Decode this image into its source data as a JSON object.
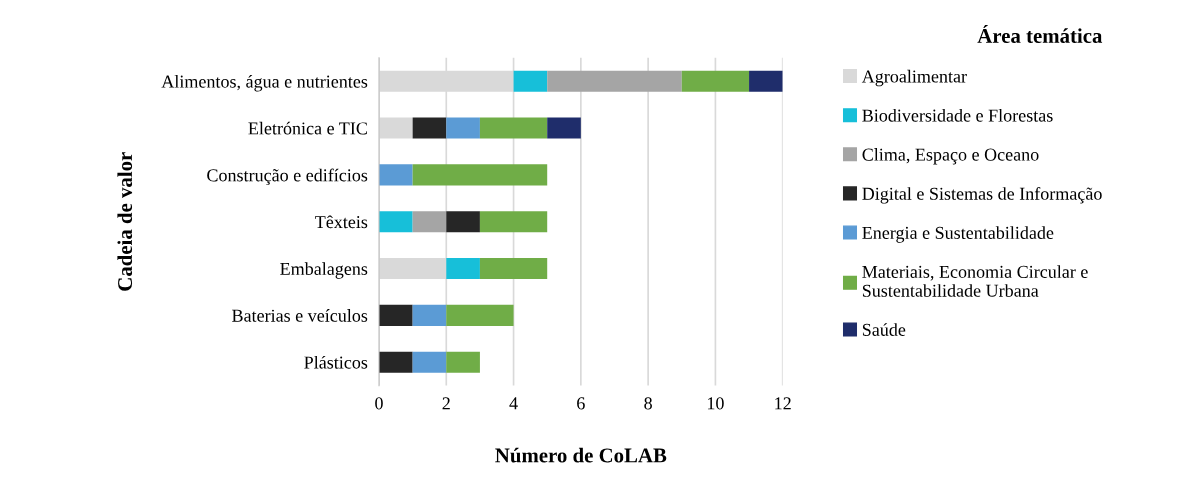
{
  "chart_data": {
    "type": "bar",
    "orientation": "horizontal",
    "stacked": true,
    "ylabel": "Cadeia de valor",
    "xlabel": "Número de CoLAB",
    "legend_title": "Área temática",
    "categories": [
      "Alimentos, água e nutrientes",
      "Eletrónica e TIC",
      "Construção e edifícios",
      "Têxteis",
      "Embalagens",
      "Baterias e veículos",
      "Plásticos"
    ],
    "series": [
      {
        "name": "Agroalimentar",
        "color": "#d9d9d9",
        "values": [
          4,
          1,
          0,
          0,
          2,
          0,
          0
        ]
      },
      {
        "name": "Biodiversidade e Florestas",
        "color": "#17bfd9",
        "values": [
          1,
          0,
          0,
          1,
          1,
          0,
          0
        ]
      },
      {
        "name": "Clima, Espaço e Oceano",
        "color": "#a5a5a5",
        "values": [
          4,
          0,
          0,
          1,
          0,
          0,
          0
        ]
      },
      {
        "name": "Digital e Sistemas de Informação",
        "color": "#262626",
        "values": [
          0,
          1,
          0,
          1,
          0,
          1,
          1
        ]
      },
      {
        "name": "Energia e Sustentabilidade",
        "color": "#5b9bd5",
        "values": [
          0,
          1,
          1,
          0,
          0,
          1,
          1
        ]
      },
      {
        "name": "Materiais, Economia Circular e\nSustentabilidade Urbana",
        "color": "#70ad47",
        "values": [
          2,
          2,
          4,
          2,
          2,
          2,
          1
        ]
      },
      {
        "name": "Saúde",
        "color": "#1f2d6b",
        "values": [
          1,
          1,
          0,
          0,
          0,
          0,
          0
        ]
      }
    ],
    "xlim": [
      0,
      12
    ],
    "xticks": [
      0,
      2,
      4,
      6,
      8,
      10,
      12
    ],
    "grid": "x",
    "legend": "right"
  }
}
